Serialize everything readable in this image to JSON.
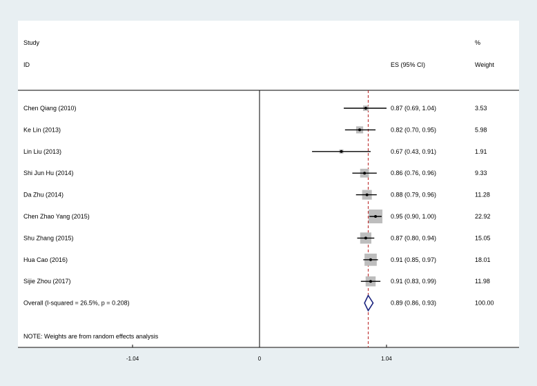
{
  "chart_data": {
    "type": "forest",
    "headers": {
      "study_top": "Study",
      "study_bottom": "ID",
      "es": "ES (95% CI)",
      "weight_top": "%",
      "weight_bottom": "Weight"
    },
    "studies": [
      {
        "id": "Chen Qiang (2010)",
        "es": 0.87,
        "lo": 0.69,
        "hi": 1.04,
        "weight": 3.53,
        "ci_text": "0.87 (0.69, 1.04)",
        "weight_text": "3.53"
      },
      {
        "id": "Ke Lin (2013)",
        "es": 0.82,
        "lo": 0.7,
        "hi": 0.95,
        "weight": 5.98,
        "ci_text": "0.82 (0.70, 0.95)",
        "weight_text": "5.98"
      },
      {
        "id": "Lin Liu (2013)",
        "es": 0.67,
        "lo": 0.43,
        "hi": 0.91,
        "weight": 1.91,
        "ci_text": "0.67 (0.43, 0.91)",
        "weight_text": "1.91"
      },
      {
        "id": "Shi Jun Hu (2014)",
        "es": 0.86,
        "lo": 0.76,
        "hi": 0.96,
        "weight": 9.33,
        "ci_text": "0.86 (0.76, 0.96)",
        "weight_text": "9.33"
      },
      {
        "id": "Da Zhu  (2014)",
        "es": 0.88,
        "lo": 0.79,
        "hi": 0.96,
        "weight": 11.28,
        "ci_text": "0.88 (0.79, 0.96)",
        "weight_text": "11.28"
      },
      {
        "id": "Chen Zhao Yang (2015)",
        "es": 0.95,
        "lo": 0.9,
        "hi": 1.0,
        "weight": 22.92,
        "ci_text": "0.95 (0.90, 1.00)",
        "weight_text": "22.92"
      },
      {
        "id": "Shu Zhang (2015)",
        "es": 0.87,
        "lo": 0.8,
        "hi": 0.94,
        "weight": 15.05,
        "ci_text": "0.87 (0.80, 0.94)",
        "weight_text": "15.05"
      },
      {
        "id": "Hua Cao (2016)",
        "es": 0.91,
        "lo": 0.85,
        "hi": 0.97,
        "weight": 18.01,
        "ci_text": "0.91 (0.85, 0.97)",
        "weight_text": "18.01"
      },
      {
        "id": "Sijie Zhou (2017)",
        "es": 0.91,
        "lo": 0.83,
        "hi": 0.99,
        "weight": 11.98,
        "ci_text": "0.91 (0.83, 0.99)",
        "weight_text": "11.98"
      }
    ],
    "overall": {
      "label": "Overall  (I-squared = 26.5%, p = 0.208)",
      "es": 0.89,
      "lo": 0.86,
      "hi": 0.93,
      "ci_text": "0.89 (0.86, 0.93)",
      "weight_text": "100.00"
    },
    "note": "NOTE: Weights are from random effects analysis",
    "x_ticks": [
      {
        "value": -1.04,
        "label": "-1.04"
      },
      {
        "value": 0,
        "label": "0"
      },
      {
        "value": 1.04,
        "label": "1.04"
      }
    ],
    "xlim": [
      -2.12,
      2.3
    ],
    "null_line": 0,
    "colors": {
      "square": "#bdbdbd",
      "ci_line": "#000000",
      "diamond": "#1a237e",
      "overall_line": "#b71c1c",
      "background": "#e8eff2",
      "plot_bg": "#ffffff"
    }
  }
}
